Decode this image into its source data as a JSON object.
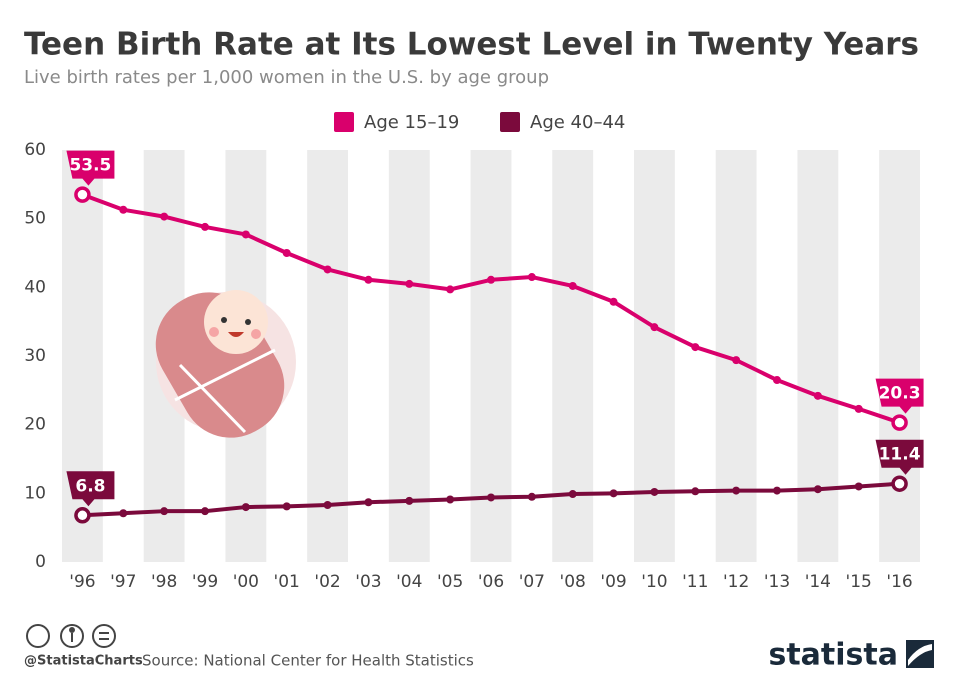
{
  "chart_data": {
    "type": "line",
    "title": "Teen Birth Rate at Its Lowest Level in Twenty Years",
    "subtitle": "Live birth rates per 1,000 women in the U.S. by age group",
    "categories": [
      "'96",
      "'97",
      "'98",
      "'99",
      "'00",
      "'01",
      "'02",
      "'03",
      "'04",
      "'05",
      "'06",
      "'07",
      "'08",
      "'09",
      "'10",
      "'11",
      "'12",
      "'13",
      "'14",
      "'15",
      "'16"
    ],
    "series": [
      {
        "name": "Age 15–19",
        "color": "#d9006c",
        "values": [
          53.5,
          51.3,
          50.3,
          48.8,
          47.7,
          45.0,
          42.6,
          41.1,
          40.5,
          39.7,
          41.1,
          41.5,
          40.2,
          37.9,
          34.2,
          31.3,
          29.4,
          26.5,
          24.2,
          22.3,
          20.3
        ]
      },
      {
        "name": "Age 40–44",
        "color": "#7b0a3c",
        "values": [
          6.8,
          7.1,
          7.4,
          7.4,
          8.0,
          8.1,
          8.3,
          8.7,
          8.9,
          9.1,
          9.4,
          9.5,
          9.9,
          10.0,
          10.2,
          10.3,
          10.4,
          10.4,
          10.6,
          11.0,
          11.4
        ]
      }
    ],
    "ylim": [
      0,
      60
    ],
    "yticks": [
      0,
      10,
      20,
      30,
      40,
      50,
      60
    ],
    "credit": "@StatistaCharts",
    "source": "Source: National Center for Health Statistics",
    "brand": "statista"
  }
}
